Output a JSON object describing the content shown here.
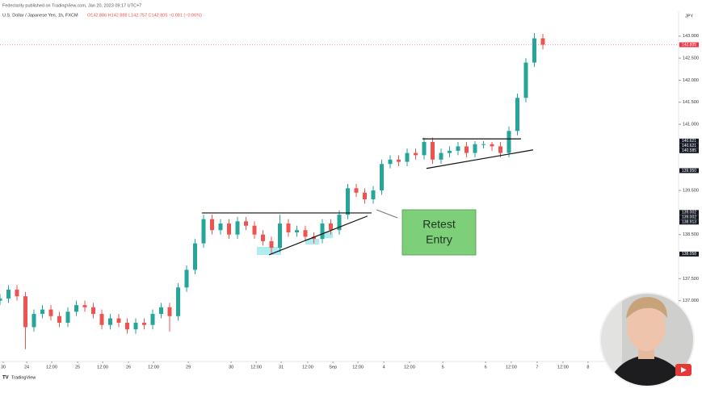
{
  "header": {
    "publisher": "Fedeclarity published on TradingView.com, Jan 20, 2023 09:17 UTC+7",
    "symbol": "U.S. Dollar / Japanese Yen, 1h, FXCM",
    "ohlc": "O142.886 H142.888 L142.757 C142.805 −0.081 (−0.06%)"
  },
  "chart_data": {
    "type": "candlestick",
    "currency": "JPY",
    "x": [
      0,
      4,
      8,
      12,
      16,
      20,
      24,
      28,
      32,
      36,
      40,
      44,
      48,
      52,
      56,
      60,
      64,
      68,
      72,
      76,
      80,
      84,
      88,
      92,
      96,
      100,
      104,
      108,
      112,
      116,
      120,
      124,
      128,
      132,
      136,
      140,
      144,
      148,
      152,
      156,
      160,
      164,
      168,
      172,
      176,
      180,
      184,
      188,
      192,
      196,
      200,
      204,
      208,
      212,
      216,
      220,
      224,
      228,
      232,
      236,
      240,
      244,
      248,
      252,
      256
    ],
    "open": [
      137.0,
      137.05,
      137.25,
      137.1,
      136.4,
      136.7,
      136.8,
      136.65,
      136.5,
      136.75,
      136.9,
      136.85,
      136.7,
      136.45,
      136.6,
      136.5,
      136.35,
      136.5,
      136.45,
      136.7,
      136.85,
      136.65,
      137.3,
      137.7,
      138.3,
      138.85,
      138.6,
      138.75,
      138.5,
      138.8,
      138.7,
      138.5,
      138.35,
      138.2,
      138.75,
      138.55,
      138.6,
      138.45,
      138.4,
      138.75,
      138.6,
      138.95,
      139.55,
      139.45,
      139.3,
      139.5,
      140.1,
      140.2,
      140.15,
      140.35,
      140.3,
      140.6,
      140.2,
      140.35,
      140.4,
      140.5,
      140.35,
      140.55,
      140.55,
      140.5,
      140.35,
      140.85,
      141.6,
      142.4,
      142.95
    ],
    "high": [
      137.15,
      137.35,
      137.35,
      137.2,
      136.8,
      136.9,
      136.9,
      136.75,
      136.85,
      137.0,
      137.0,
      136.95,
      136.8,
      136.7,
      136.7,
      136.6,
      136.6,
      136.6,
      136.8,
      136.95,
      136.95,
      137.4,
      137.8,
      138.4,
      138.95,
      138.95,
      138.85,
      138.85,
      138.9,
      138.9,
      138.8,
      138.6,
      138.45,
      138.95,
      138.85,
      138.7,
      138.7,
      138.55,
      138.85,
      138.85,
      139.05,
      139.65,
      139.65,
      139.55,
      139.6,
      140.2,
      140.3,
      140.3,
      140.45,
      140.45,
      140.7,
      140.7,
      140.45,
      140.5,
      140.6,
      140.6,
      140.62,
      140.62,
      140.6,
      140.6,
      140.95,
      141.7,
      142.5,
      143.07,
      143.05
    ],
    "low": [
      136.9,
      136.95,
      137.0,
      135.9,
      136.3,
      136.6,
      136.55,
      136.4,
      136.4,
      136.65,
      136.75,
      136.6,
      136.35,
      136.35,
      136.4,
      136.25,
      136.25,
      136.35,
      136.35,
      136.6,
      136.3,
      136.55,
      137.2,
      137.6,
      138.2,
      138.5,
      138.5,
      138.4,
      138.4,
      138.6,
      138.4,
      138.25,
      138.06,
      138.1,
      138.45,
      138.45,
      138.35,
      138.3,
      138.3,
      138.5,
      138.5,
      138.85,
      139.35,
      139.2,
      139.2,
      139.4,
      140.0,
      140.05,
      140.05,
      140.2,
      140.2,
      140.1,
      140.1,
      140.25,
      140.3,
      140.25,
      140.25,
      140.45,
      140.4,
      140.25,
      140.25,
      140.75,
      141.5,
      142.3,
      142.7
    ],
    "close": [
      137.05,
      137.25,
      137.1,
      136.4,
      136.7,
      136.8,
      136.65,
      136.5,
      136.75,
      136.9,
      136.85,
      136.7,
      136.45,
      136.6,
      136.5,
      136.35,
      136.5,
      136.45,
      136.7,
      136.85,
      136.65,
      137.3,
      137.7,
      138.3,
      138.85,
      138.6,
      138.75,
      138.5,
      138.8,
      138.7,
      138.5,
      138.35,
      138.2,
      138.75,
      138.55,
      138.6,
      138.45,
      138.4,
      138.75,
      138.6,
      138.95,
      139.55,
      139.45,
      139.3,
      139.5,
      140.1,
      140.2,
      140.15,
      140.35,
      140.3,
      140.6,
      140.2,
      140.35,
      140.4,
      140.5,
      140.35,
      140.55,
      140.55,
      140.5,
      140.35,
      140.85,
      141.6,
      142.4,
      142.95,
      142.805
    ],
    "up_color": "#26a69a",
    "down_color": "#ef5350",
    "xlim": [
      0,
      320
    ],
    "ylim": [
      135.64,
      143.49
    ],
    "xticks": [
      {
        "value": 1.5,
        "label": "30"
      },
      {
        "value": 12.6,
        "label": "24"
      },
      {
        "value": 24.4,
        "label": "12:00"
      },
      {
        "value": 36.6,
        "label": "25"
      },
      {
        "value": 48.4,
        "label": "12:00"
      },
      {
        "value": 60.6,
        "label": "26"
      },
      {
        "value": 72.4,
        "label": "12:00"
      },
      {
        "value": 88.8,
        "label": "29"
      },
      {
        "value": 109,
        "label": "30"
      },
      {
        "value": 120.8,
        "label": "12:00"
      },
      {
        "value": 132.6,
        "label": "31"
      },
      {
        "value": 145.1,
        "label": "12:00"
      },
      {
        "value": 157,
        "label": "Sep"
      },
      {
        "value": 168.8,
        "label": "12:00"
      },
      {
        "value": 181,
        "label": "4"
      },
      {
        "value": 193.1,
        "label": "12:00"
      },
      {
        "value": 208.8,
        "label": "5"
      },
      {
        "value": 229,
        "label": "6"
      },
      {
        "value": 241.1,
        "label": "12:00"
      },
      {
        "value": 253.3,
        "label": "7"
      },
      {
        "value": 265.5,
        "label": "12:00"
      },
      {
        "value": 277.3,
        "label": "8"
      }
    ],
    "yticks": [
      {
        "value": 137,
        "label": "137.000"
      },
      {
        "value": 137.5,
        "label": "137.500"
      },
      {
        "value": 138.5,
        "label": "138.500"
      },
      {
        "value": 139.5,
        "label": "139.500"
      },
      {
        "value": 141,
        "label": "141.000"
      },
      {
        "value": 141.5,
        "label": "141.500"
      },
      {
        "value": 142,
        "label": "142.000"
      },
      {
        "value": 142.5,
        "label": "142.500"
      },
      {
        "value": 143,
        "label": "143.000"
      }
    ],
    "price_tags": [
      {
        "value": 142.805,
        "label": "142.805",
        "color": "#f23645"
      },
      {
        "value": 140.621,
        "label": "140.621",
        "color": "#131722"
      },
      {
        "value": 140.621,
        "label": "140.621",
        "color": "#131722"
      },
      {
        "value": 140.585,
        "label": "140.585",
        "color": "#131722"
      },
      {
        "value": 139.95,
        "label": "139.950",
        "color": "#131722"
      },
      {
        "value": 139.002,
        "label": "139.002",
        "color": "#131722"
      },
      {
        "value": 139.002,
        "label": "139.002",
        "color": "#131722"
      },
      {
        "value": 138.913,
        "label": "138.913",
        "color": "#131722"
      },
      {
        "value": 138.058,
        "label": "138.058",
        "color": "#131722"
      }
    ],
    "drawings": [
      {
        "x": [
          95.2,
          175.2
        ],
        "y": [
          138.99,
          138.99
        ]
      },
      {
        "x": [
          126.9,
          173.3
        ],
        "y": [
          138.04,
          138.92
        ]
      },
      {
        "x": [
          199.2,
          245.7
        ],
        "y": [
          140.67,
          140.67
        ]
      },
      {
        "x": [
          201.1,
          251.4
        ],
        "y": [
          140.0,
          140.42
        ]
      }
    ],
    "annotation": {
      "lines": [
        "Retest",
        "Entry"
      ],
      "color": "#7dcf7a"
    }
  },
  "footer": {
    "brand": "TradingView"
  }
}
